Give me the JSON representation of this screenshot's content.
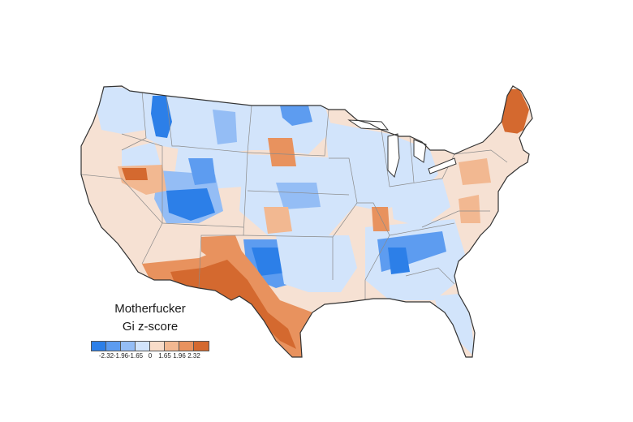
{
  "legend": {
    "title_line1": "Motherfucker",
    "title_line2": "Gi z-score",
    "ticks": [
      "-2.32",
      "-1.96",
      "-1.65",
      "0",
      "1.65",
      "1.96",
      "2.32"
    ],
    "colors": [
      "#2c7fe8",
      "#5d9cf0",
      "#94bdf5",
      "#d2e4fb",
      "#f8dcc9",
      "#f2b891",
      "#e8925e",
      "#d4692f"
    ]
  },
  "map": {
    "outline_color": "#333333",
    "base_color": "#f6e1d3",
    "cold_colors": [
      "#2c7fe8",
      "#5d9cf0",
      "#94bdf5",
      "#d2e4fb"
    ],
    "hot_colors": [
      "#f2b891",
      "#e8925e",
      "#d4692f"
    ]
  }
}
